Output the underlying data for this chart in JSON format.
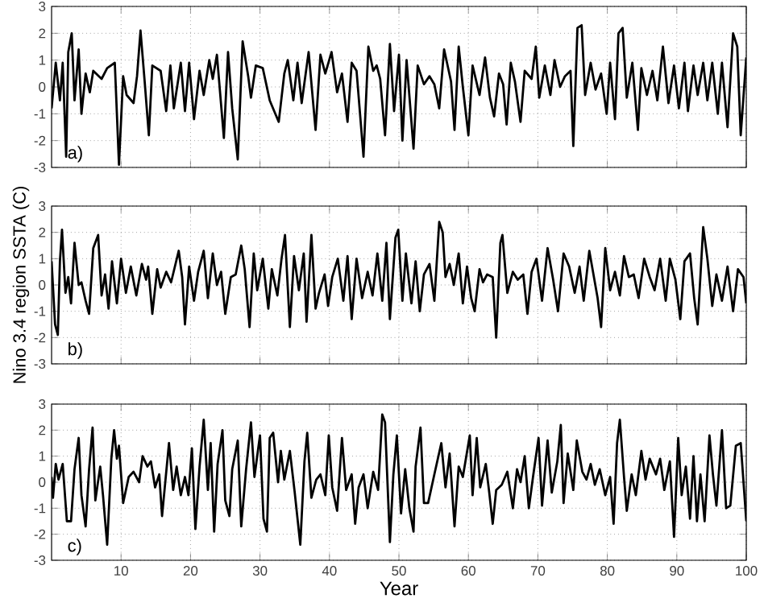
{
  "chart_data": [
    {
      "type": "line",
      "color": "#000000",
      "xlim": [
        0,
        100
      ],
      "xticks": [
        10,
        20,
        30,
        40,
        50,
        60,
        70,
        80,
        90,
        100
      ],
      "ylim": [
        -3,
        3
      ],
      "yticks": [
        -3,
        -2,
        -1,
        0,
        1,
        2,
        3
      ],
      "grid": true,
      "tick_labels": "y",
      "annotations": [
        "a)"
      ],
      "x": [
        0.0,
        0.6,
        1.2,
        1.6,
        2.1,
        2.4,
        2.9,
        3.3,
        3.9,
        4.3,
        4.9,
        5.5,
        6.0,
        7.2,
        8.0,
        9.1,
        9.7,
        10.3,
        10.8,
        11.8,
        12.3,
        12.8,
        13.4,
        14.0,
        14.5,
        15.7,
        16.5,
        17.1,
        17.6,
        18.6,
        19.2,
        19.8,
        20.5,
        21.3,
        21.9,
        22.7,
        23.2,
        23.8,
        24.8,
        25.4,
        26.0,
        26.8,
        27.5,
        28.3,
        28.7,
        29.4,
        30.4,
        31.4,
        32.2,
        32.7,
        33.5,
        34.0,
        34.8,
        35.4,
        36.0,
        37.0,
        38.0,
        38.7,
        39.4,
        40.3,
        41.1,
        41.8,
        42.6,
        43.2,
        43.9,
        44.9,
        45.6,
        46.3,
        46.8,
        47.3,
        48.0,
        48.7,
        49.3,
        50.0,
        50.5,
        51.1,
        52.1,
        52.7,
        53.6,
        54.4,
        55.1,
        55.8,
        56.5,
        57.5,
        58.0,
        58.6,
        59.2,
        60.0,
        60.6,
        61.6,
        62.4,
        63.1,
        63.7,
        64.4,
        65.0,
        65.5,
        66.1,
        66.7,
        67.5,
        68.1,
        69.1,
        69.7,
        70.2,
        71.0,
        71.8,
        72.4,
        73.2,
        73.9,
        74.7,
        75.1,
        75.7,
        76.3,
        76.8,
        77.6,
        78.3,
        79.1,
        79.9,
        80.4,
        81.1,
        81.6,
        82.2,
        82.8,
        83.6,
        84.4,
        84.9,
        85.7,
        86.5,
        87.2,
        88.0,
        88.8,
        89.6,
        90.3,
        91.1,
        91.6,
        92.4,
        93.0,
        93.8,
        94.4,
        95.1,
        95.9,
        96.5,
        97.3,
        98.1,
        98.7,
        99.2,
        100.0
      ],
      "values": [
        -0.8,
        0.9,
        -0.5,
        0.9,
        -2.6,
        1.3,
        2.0,
        -0.5,
        1.4,
        -1.0,
        0.5,
        -0.2,
        0.6,
        0.3,
        0.7,
        0.9,
        -2.9,
        0.4,
        -0.3,
        -0.6,
        0.4,
        2.1,
        0.2,
        -1.8,
        0.8,
        0.6,
        -0.9,
        0.8,
        -0.8,
        0.9,
        -0.9,
        0.9,
        -1.2,
        0.6,
        -0.3,
        1.0,
        0.3,
        1.2,
        -1.9,
        1.3,
        -0.8,
        -2.7,
        1.7,
        0.4,
        -0.4,
        0.8,
        0.7,
        -0.5,
        -1.0,
        -1.3,
        0.5,
        1.0,
        -0.5,
        0.9,
        -0.6,
        1.3,
        -1.6,
        1.2,
        0.5,
        1.3,
        -0.2,
        0.5,
        -1.3,
        0.9,
        0.6,
        -2.6,
        1.5,
        0.6,
        0.8,
        0.3,
        -1.8,
        1.6,
        -0.9,
        1.2,
        -2.0,
        1.0,
        -2.3,
        0.8,
        0.1,
        0.4,
        0.1,
        -0.8,
        1.4,
        0.2,
        -1.6,
        1.5,
        0.0,
        -1.8,
        0.8,
        -0.3,
        1.1,
        -0.4,
        -1.1,
        0.5,
        0.1,
        -1.4,
        0.9,
        0.2,
        -1.3,
        0.6,
        0.3,
        1.5,
        -0.4,
        0.8,
        -0.3,
        1.0,
        0.0,
        0.4,
        0.6,
        -2.2,
        2.2,
        2.3,
        -0.3,
        0.9,
        -0.1,
        0.5,
        -1.0,
        0.9,
        -1.2,
        2.0,
        2.2,
        -0.4,
        0.9,
        -1.6,
        0.7,
        -0.3,
        0.6,
        -0.5,
        1.5,
        -0.6,
        0.8,
        -0.8,
        0.9,
        -0.9,
        0.8,
        -0.3,
        0.9,
        -0.5,
        0.9,
        -1.0,
        0.9,
        -1.5,
        2.0,
        1.5,
        -1.8,
        1.1
      ]
    },
    {
      "type": "line",
      "color": "#000000",
      "xlim": [
        0,
        100
      ],
      "xticks": [
        10,
        20,
        30,
        40,
        50,
        60,
        70,
        80,
        90,
        100
      ],
      "ylim": [
        -3,
        3
      ],
      "yticks": [
        -3,
        -2,
        -1,
        0,
        1,
        2,
        3
      ],
      "grid": true,
      "tick_labels": "y",
      "ylabel": "Nino 3.4 region SSTA (C)",
      "annotations": [
        "b)"
      ],
      "x": [
        0.0,
        0.5,
        0.9,
        1.2,
        1.5,
        2.0,
        2.4,
        2.8,
        3.3,
        3.9,
        4.3,
        4.9,
        5.4,
        6.0,
        6.7,
        7.2,
        7.7,
        8.2,
        8.7,
        9.4,
        10.0,
        10.7,
        11.4,
        12.2,
        13.0,
        13.6,
        13.9,
        14.5,
        15.2,
        15.7,
        16.5,
        17.2,
        18.3,
        18.8,
        19.2,
        19.8,
        20.5,
        21.1,
        21.9,
        22.5,
        23.2,
        23.8,
        24.4,
        25.0,
        25.8,
        26.5,
        27.3,
        27.8,
        28.5,
        29.1,
        29.6,
        30.4,
        31.2,
        31.7,
        32.5,
        33.1,
        33.6,
        34.3,
        34.9,
        35.6,
        36.3,
        36.7,
        37.4,
        38.0,
        38.5,
        39.3,
        39.8,
        40.4,
        41.2,
        42.0,
        42.6,
        43.2,
        43.9,
        44.7,
        45.5,
        46.2,
        46.9,
        47.6,
        48.2,
        48.7,
        49.5,
        49.9,
        50.5,
        51.0,
        51.8,
        52.4,
        53.0,
        53.6,
        54.4,
        55.1,
        55.8,
        56.3,
        56.7,
        57.3,
        57.9,
        58.6,
        59.2,
        59.8,
        60.4,
        60.9,
        61.6,
        62.1,
        62.7,
        63.5,
        64.0,
        64.6,
        64.9,
        65.6,
        66.4,
        67.1,
        67.9,
        68.5,
        69.1,
        69.8,
        70.6,
        71.4,
        72.2,
        72.9,
        73.7,
        74.5,
        75.3,
        76.0,
        76.6,
        77.4,
        78.0,
        78.6,
        79.1,
        79.7,
        80.4,
        81.1,
        81.8,
        82.4,
        83.1,
        83.8,
        84.5,
        85.3,
        86.1,
        86.8,
        87.6,
        88.4,
        89.0,
        89.8,
        90.5,
        91.1,
        91.9,
        92.5,
        93.0,
        93.8,
        94.4,
        95.1,
        95.7,
        96.5,
        97.3,
        98.1,
        98.8,
        99.6,
        100.0
      ],
      "values": [
        0.9,
        -1.5,
        -1.9,
        0.9,
        2.1,
        -0.3,
        0.3,
        -0.7,
        1.6,
        0.0,
        0.1,
        -0.6,
        -1.1,
        1.4,
        1.9,
        -0.4,
        0.4,
        -0.9,
        0.9,
        -0.7,
        1.0,
        -0.3,
        0.7,
        -0.4,
        0.8,
        0.2,
        0.7,
        -1.1,
        0.6,
        -0.1,
        0.5,
        0.1,
        1.3,
        0.3,
        -1.5,
        0.7,
        -0.6,
        0.5,
        1.3,
        -0.5,
        1.2,
        0.0,
        0.5,
        -1.1,
        0.3,
        0.4,
        1.5,
        0.6,
        -1.6,
        1.2,
        -0.2,
        1.0,
        -0.9,
        0.6,
        -0.4,
        1.0,
        1.9,
        -1.6,
        1.1,
        -0.2,
        1.2,
        -1.4,
        1.9,
        -0.9,
        -0.3,
        0.4,
        -0.8,
        0.3,
        1.0,
        -0.6,
        1.1,
        -1.3,
        1.0,
        -0.5,
        0.5,
        -0.4,
        1.2,
        -0.6,
        1.6,
        -1.3,
        1.8,
        2.1,
        -0.6,
        1.2,
        -0.7,
        0.9,
        -1.0,
        0.4,
        0.8,
        -0.6,
        2.4,
        2.0,
        0.3,
        0.8,
        0.0,
        1.2,
        -0.7,
        0.7,
        -0.5,
        -1.0,
        0.6,
        0.1,
        0.4,
        0.3,
        -2.0,
        1.6,
        1.9,
        -0.3,
        0.5,
        0.2,
        0.4,
        -1.1,
        0.5,
        1.0,
        -0.6,
        1.4,
        0.2,
        -1.0,
        1.2,
        0.7,
        -0.3,
        0.7,
        -0.6,
        1.3,
        0.4,
        -0.5,
        -1.6,
        1.4,
        -0.2,
        0.5,
        -0.4,
        1.1,
        0.3,
        0.4,
        -0.5,
        1.0,
        0.3,
        -0.2,
        1.0,
        -0.6,
        1.0,
        0.2,
        -1.3,
        0.9,
        1.2,
        -0.5,
        -1.5,
        2.2,
        1.0,
        -0.8,
        0.4,
        -0.6,
        0.7,
        -1.0,
        0.6,
        0.3,
        -0.7
      ]
    },
    {
      "type": "line",
      "color": "#000000",
      "xlim": [
        0,
        100
      ],
      "xticks": [
        10,
        20,
        30,
        40,
        50,
        60,
        70,
        80,
        90,
        100
      ],
      "ylim": [
        -3,
        3
      ],
      "yticks": [
        -3,
        -2,
        -1,
        0,
        1,
        2,
        3
      ],
      "grid": true,
      "xlabel": "Year",
      "annotations": [
        "c)"
      ],
      "x": [
        0.0,
        0.2,
        0.6,
        1.0,
        1.6,
        2.2,
        2.8,
        3.3,
        3.9,
        4.3,
        4.9,
        5.4,
        5.9,
        6.3,
        7.0,
        7.4,
        8.0,
        8.6,
        9.0,
        9.4,
        9.7,
        10.3,
        11.1,
        11.8,
        12.6,
        13.1,
        13.8,
        14.3,
        14.9,
        15.5,
        15.9,
        16.9,
        17.5,
        18.0,
        18.6,
        19.2,
        19.7,
        20.2,
        20.7,
        21.3,
        21.9,
        22.5,
        22.9,
        23.4,
        23.9,
        24.6,
        25.0,
        25.6,
        26.0,
        26.8,
        27.3,
        28.0,
        28.7,
        29.2,
        30.0,
        30.5,
        31.0,
        31.4,
        31.9,
        32.6,
        33.0,
        33.5,
        34.3,
        35.0,
        35.8,
        36.4,
        36.8,
        37.4,
        38.1,
        38.7,
        39.4,
        39.9,
        40.4,
        41.1,
        41.8,
        42.4,
        43.2,
        43.7,
        44.2,
        44.9,
        45.5,
        46.3,
        47.0,
        47.6,
        48.0,
        48.7,
        49.2,
        49.7,
        50.3,
        50.9,
        51.5,
        52.1,
        52.4,
        53.1,
        53.6,
        54.2,
        55.1,
        56.1,
        56.7,
        57.3,
        58.0,
        58.6,
        59.2,
        60.2,
        60.6,
        61.2,
        61.7,
        62.5,
        63.0,
        63.5,
        64.0,
        64.8,
        65.6,
        66.4,
        67.0,
        67.5,
        68.1,
        68.7,
        69.3,
        70.1,
        70.6,
        71.4,
        72.0,
        72.8,
        73.3,
        73.7,
        74.3,
        75.1,
        75.6,
        76.4,
        77.0,
        77.6,
        78.2,
        78.9,
        79.7,
        80.4,
        80.9,
        81.4,
        81.8,
        82.4,
        82.8,
        83.5,
        84.1,
        84.9,
        85.5,
        86.1,
        87.0,
        87.6,
        88.2,
        89.0,
        89.6,
        90.2,
        90.7,
        91.3,
        91.9,
        92.4,
        92.9,
        93.4,
        94.0,
        94.7,
        95.2,
        95.7,
        96.5,
        97.1,
        97.7,
        98.5,
        99.2,
        100.0
      ],
      "values": [
        0.2,
        -0.6,
        0.7,
        0.1,
        0.7,
        -1.5,
        -1.5,
        0.5,
        1.7,
        -0.5,
        -1.7,
        0.5,
        2.1,
        -0.7,
        0.6,
        -0.5,
        -2.4,
        0.9,
        2.0,
        0.9,
        1.4,
        -0.8,
        0.2,
        0.4,
        0.0,
        1.0,
        0.6,
        0.8,
        -0.2,
        0.3,
        -1.3,
        1.5,
        -0.3,
        0.6,
        -0.5,
        0.2,
        -0.5,
        1.3,
        -1.8,
        0.6,
        2.4,
        -0.3,
        1.5,
        -1.9,
        0.7,
        2.0,
        -0.7,
        -1.3,
        0.5,
        1.6,
        -1.7,
        0.5,
        2.3,
        0.2,
        1.8,
        -1.4,
        -1.9,
        1.7,
        1.9,
        0.0,
        1.2,
        0.1,
        1.2,
        -0.4,
        -2.4,
        0.8,
        1.9,
        -0.6,
        0.1,
        0.3,
        -0.5,
        1.8,
        -0.2,
        -1.1,
        1.7,
        -0.3,
        0.3,
        -1.6,
        -0.2,
        0.3,
        -1.0,
        0.4,
        -0.3,
        2.6,
        2.3,
        -2.3,
        0.3,
        1.8,
        -1.2,
        0.5,
        -1.0,
        -1.9,
        0.6,
        2.1,
        -0.8,
        -0.8,
        0.3,
        1.5,
        -0.2,
        1.1,
        -1.7,
        0.6,
        0.2,
        1.8,
        -0.5,
        1.7,
        -0.2,
        0.7,
        -0.4,
        -1.6,
        -0.3,
        -0.1,
        0.4,
        -1.0,
        0.5,
        0.0,
        1.0,
        -1.0,
        0.2,
        1.7,
        -0.9,
        1.6,
        -0.4,
        0.8,
        2.2,
        -0.8,
        1.1,
        -0.3,
        1.6,
        0.4,
        0.1,
        0.7,
        -0.1,
        0.5,
        -0.5,
        0.2,
        -1.6,
        1.5,
        2.4,
        0.2,
        -1.1,
        0.3,
        -0.5,
        1.2,
        0.1,
        0.9,
        0.3,
        0.9,
        -0.3,
        0.8,
        -2.1,
        1.7,
        -0.5,
        0.6,
        -1.4,
        1.0,
        -1.5,
        0.3,
        -1.5,
        1.8,
        0.3,
        -0.9,
        2.0,
        -1.0,
        -0.9,
        1.4,
        1.5,
        -1.5
      ]
    }
  ]
}
